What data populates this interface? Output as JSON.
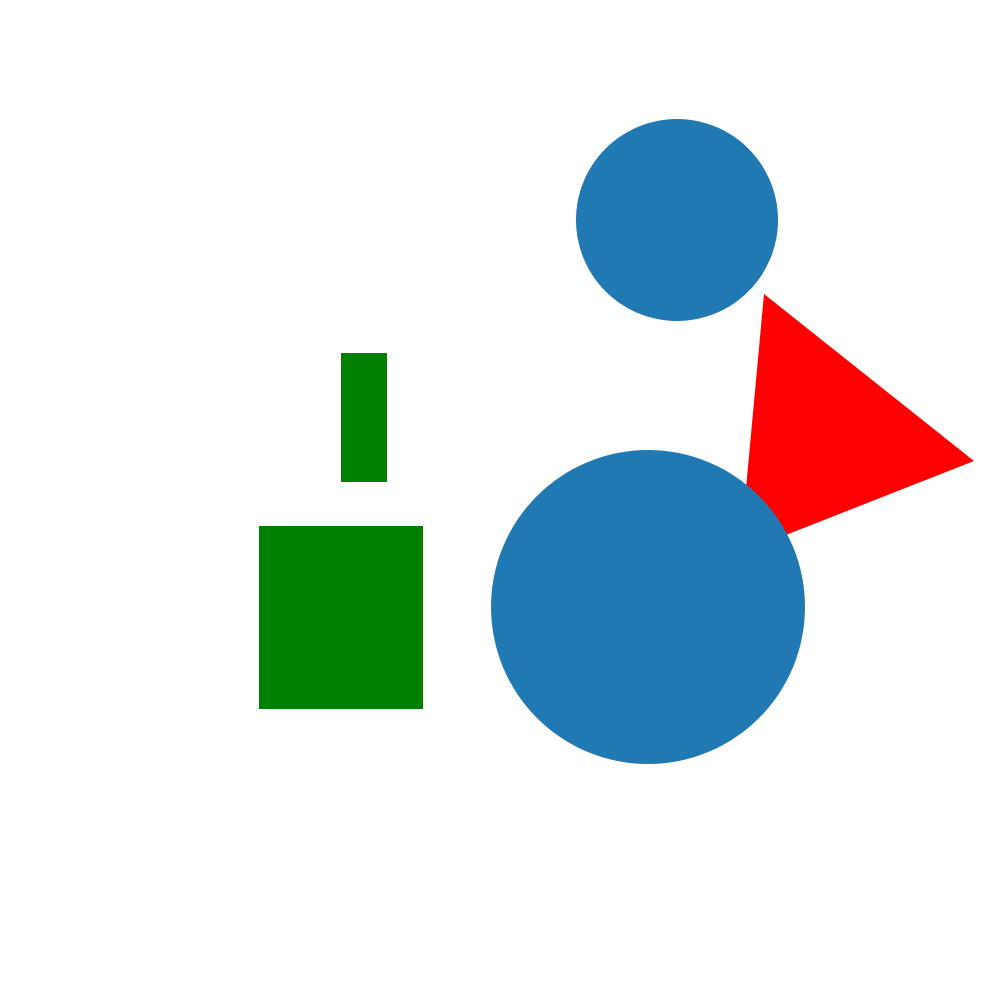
{
  "colors": {
    "background": "#ffffff",
    "circle": "#2179b4",
    "rectangle": "#008000",
    "triangle": "#ff0000"
  },
  "shapes": [
    {
      "name": "top-circle",
      "kind": "circle",
      "color_key": "circle"
    },
    {
      "name": "large-circle",
      "kind": "circle",
      "color_key": "circle"
    },
    {
      "name": "triangle",
      "kind": "polygon",
      "color_key": "triangle"
    },
    {
      "name": "tall-rectangle",
      "kind": "rectangle",
      "color_key": "rectangle"
    },
    {
      "name": "square",
      "kind": "rectangle",
      "color_key": "rectangle"
    }
  ]
}
